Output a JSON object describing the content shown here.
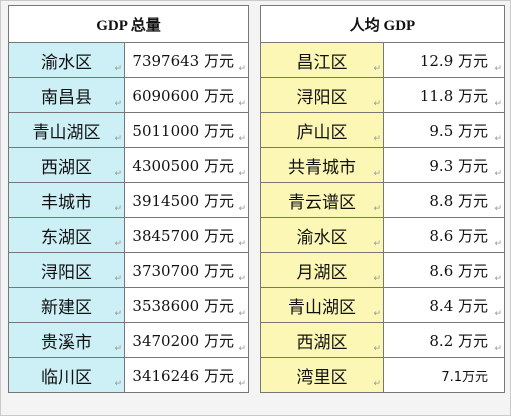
{
  "headers": {
    "gdp_total": "GDP 总量",
    "gdp_per_capita": "人均 GDP"
  },
  "mark_glyph": "↵",
  "rows": [
    {
      "region_total": "渝水区",
      "total": "7397643 万元",
      "region_per": "昌江区",
      "per": "12.9 万元"
    },
    {
      "region_total": "南昌县",
      "total": "6090600 万元",
      "region_per": "浔阳区",
      "per": "11.8 万元"
    },
    {
      "region_total": "青山湖区",
      "total": "5011000 万元",
      "region_per": "庐山区",
      "per": "9.5 万元"
    },
    {
      "region_total": "西湖区",
      "total": "4300500 万元",
      "region_per": "共青城市",
      "per": "9.3 万元"
    },
    {
      "region_total": "丰城市",
      "total": "3914500 万元",
      "region_per": "青云谱区",
      "per": "8.8 万元"
    },
    {
      "region_total": "东湖区",
      "total": "3845700 万元",
      "region_per": "渝水区",
      "per": "8.6 万元"
    },
    {
      "region_total": "浔阳区",
      "total": "3730700 万元",
      "region_per": "月湖区",
      "per": "8.6 万元"
    },
    {
      "region_total": "新建区",
      "total": "3538600 万元",
      "region_per": "青山湖区",
      "per": "8.4 万元"
    },
    {
      "region_total": "贵溪市",
      "total": "3470200 万元",
      "region_per": "西湖区",
      "per": "8.2 万元"
    },
    {
      "region_total": "临川区",
      "total": "3416246 万元",
      "region_per": "湾里区",
      "per": "7.1万元"
    }
  ],
  "colors": {
    "cyan_cell": "#cdeff6",
    "yellow_cell": "#fcf7b5",
    "border": "#777777"
  }
}
